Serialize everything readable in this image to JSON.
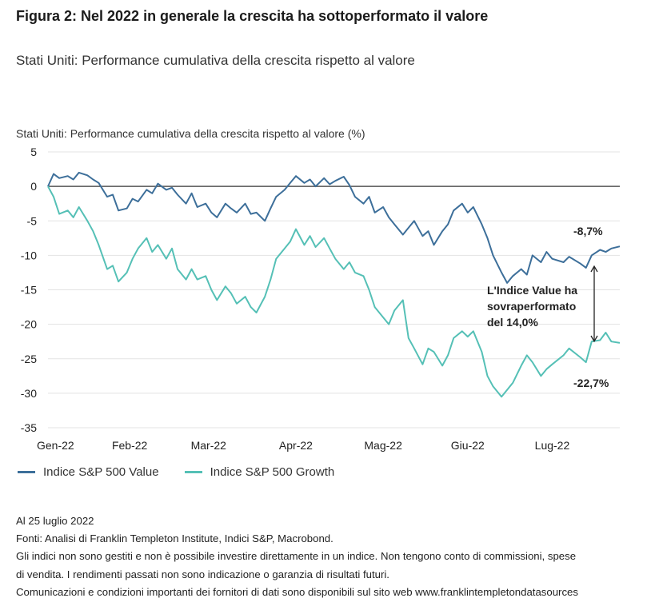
{
  "figure": {
    "title": "Figura 2: Nel 2022 in generale la crescita ha sottoperformato il valore",
    "subtitle": "Stati Uniti: Performance cumulativa della crescita rispetto al valore"
  },
  "notes": [
    "Al 25 luglio 2022",
    "Fonti: Analisi di Franklin Templeton Institute, Indici S&P, Macrobond.",
    "Gli indici non sono gestiti e non è possibile investire direttamente in un indice. Non tengono conto di commissioni, spese",
    "di vendita. I rendimenti passati non sono indicazione o garanzia di risultati futuri.",
    "Comunicazioni e condizioni importanti dei fornitori di dati sono disponibili sul sito web www.franklintempletondatasources"
  ],
  "colors": {
    "value": "#3d6f9a",
    "growth": "#55c0b6",
    "zero_line": "#555555",
    "grid": "#e3e3e3",
    "text": "#222222"
  },
  "chart_data": {
    "type": "line",
    "title": "Stati Uniti:  Performance cumulativa della crescita rispetto al valore (%)",
    "xlabel": "",
    "ylabel": "",
    "ylim": [
      -35,
      5
    ],
    "yticks": [
      5,
      0,
      -5,
      -10,
      -15,
      -20,
      -25,
      -30,
      -35
    ],
    "xlim": [
      "2022-01-03",
      "2022-07-25"
    ],
    "xticks": [
      {
        "date": "2022-01-03",
        "label": "Gen-22"
      },
      {
        "date": "2022-02-01",
        "label": "Feb-22"
      },
      {
        "date": "2022-03-01",
        "label": "Mar-22"
      },
      {
        "date": "2022-04-01",
        "label": "Apr-22"
      },
      {
        "date": "2022-05-02",
        "label": "Mag-22"
      },
      {
        "date": "2022-06-01",
        "label": "Giu-22"
      },
      {
        "date": "2022-07-01",
        "label": "Lug-22"
      }
    ],
    "grid": true,
    "legend_position": "bottom-left",
    "series": [
      {
        "name": "Indice S&P 500 Value",
        "color": "#3d6f9a",
        "points": [
          [
            "2022-01-03",
            0
          ],
          [
            "2022-01-05",
            1.8
          ],
          [
            "2022-01-07",
            1.2
          ],
          [
            "2022-01-10",
            1.5
          ],
          [
            "2022-01-12",
            1.0
          ],
          [
            "2022-01-14",
            2.0
          ],
          [
            "2022-01-17",
            1.6
          ],
          [
            "2022-01-19",
            1.0
          ],
          [
            "2022-01-21",
            0.5
          ],
          [
            "2022-01-24",
            -1.5
          ],
          [
            "2022-01-26",
            -1.2
          ],
          [
            "2022-01-28",
            -3.5
          ],
          [
            "2022-01-31",
            -3.2
          ],
          [
            "2022-02-02",
            -1.8
          ],
          [
            "2022-02-04",
            -2.2
          ],
          [
            "2022-02-07",
            -0.5
          ],
          [
            "2022-02-09",
            -1.0
          ],
          [
            "2022-02-11",
            0.4
          ],
          [
            "2022-02-14",
            -0.5
          ],
          [
            "2022-02-16",
            -0.2
          ],
          [
            "2022-02-18",
            -1.2
          ],
          [
            "2022-02-21",
            -2.5
          ],
          [
            "2022-02-23",
            -1.0
          ],
          [
            "2022-02-25",
            -3.0
          ],
          [
            "2022-02-28",
            -2.5
          ],
          [
            "2022-03-02",
            -3.8
          ],
          [
            "2022-03-04",
            -4.5
          ],
          [
            "2022-03-07",
            -2.5
          ],
          [
            "2022-03-09",
            -3.2
          ],
          [
            "2022-03-11",
            -3.8
          ],
          [
            "2022-03-14",
            -2.5
          ],
          [
            "2022-03-16",
            -4.0
          ],
          [
            "2022-03-18",
            -3.8
          ],
          [
            "2022-03-21",
            -5.0
          ],
          [
            "2022-03-23",
            -3.2
          ],
          [
            "2022-03-25",
            -1.5
          ],
          [
            "2022-03-28",
            -0.5
          ],
          [
            "2022-03-30",
            0.5
          ],
          [
            "2022-04-01",
            1.5
          ],
          [
            "2022-04-04",
            0.5
          ],
          [
            "2022-04-06",
            1.0
          ],
          [
            "2022-04-08",
            0.0
          ],
          [
            "2022-04-11",
            1.2
          ],
          [
            "2022-04-13",
            0.3
          ],
          [
            "2022-04-15",
            0.8
          ],
          [
            "2022-04-18",
            1.4
          ],
          [
            "2022-04-20",
            0.2
          ],
          [
            "2022-04-22",
            -1.5
          ],
          [
            "2022-04-25",
            -2.5
          ],
          [
            "2022-04-27",
            -1.5
          ],
          [
            "2022-04-29",
            -3.8
          ],
          [
            "2022-05-02",
            -3.0
          ],
          [
            "2022-05-04",
            -4.5
          ],
          [
            "2022-05-06",
            -5.5
          ],
          [
            "2022-05-09",
            -7.0
          ],
          [
            "2022-05-11",
            -6.0
          ],
          [
            "2022-05-13",
            -5.0
          ],
          [
            "2022-05-16",
            -7.2
          ],
          [
            "2022-05-18",
            -6.5
          ],
          [
            "2022-05-20",
            -8.5
          ],
          [
            "2022-05-23",
            -6.5
          ],
          [
            "2022-05-25",
            -5.5
          ],
          [
            "2022-05-27",
            -3.5
          ],
          [
            "2022-05-30",
            -2.5
          ],
          [
            "2022-06-01",
            -3.8
          ],
          [
            "2022-06-03",
            -3.0
          ],
          [
            "2022-06-06",
            -5.5
          ],
          [
            "2022-06-08",
            -7.5
          ],
          [
            "2022-06-10",
            -10.0
          ],
          [
            "2022-06-13",
            -12.5
          ],
          [
            "2022-06-15",
            -14.0
          ],
          [
            "2022-06-17",
            -13.0
          ],
          [
            "2022-06-20",
            -12.0
          ],
          [
            "2022-06-22",
            -12.8
          ],
          [
            "2022-06-24",
            -10.0
          ],
          [
            "2022-06-27",
            -11.0
          ],
          [
            "2022-06-29",
            -9.5
          ],
          [
            "2022-07-01",
            -10.5
          ],
          [
            "2022-07-05",
            -11.0
          ],
          [
            "2022-07-07",
            -10.2
          ],
          [
            "2022-07-11",
            -11.2
          ],
          [
            "2022-07-13",
            -11.8
          ],
          [
            "2022-07-15",
            -10.0
          ],
          [
            "2022-07-18",
            -9.2
          ],
          [
            "2022-07-20",
            -9.5
          ],
          [
            "2022-07-22",
            -9.0
          ],
          [
            "2022-07-25",
            -8.7
          ]
        ]
      },
      {
        "name": "Indice S&P 500 Growth",
        "color": "#55c0b6",
        "points": [
          [
            "2022-01-03",
            0
          ],
          [
            "2022-01-05",
            -1.5
          ],
          [
            "2022-01-07",
            -4.0
          ],
          [
            "2022-01-10",
            -3.5
          ],
          [
            "2022-01-12",
            -4.5
          ],
          [
            "2022-01-14",
            -3.0
          ],
          [
            "2022-01-17",
            -5.0
          ],
          [
            "2022-01-19",
            -6.5
          ],
          [
            "2022-01-21",
            -8.5
          ],
          [
            "2022-01-24",
            -12.0
          ],
          [
            "2022-01-26",
            -11.5
          ],
          [
            "2022-01-28",
            -13.8
          ],
          [
            "2022-01-31",
            -12.5
          ],
          [
            "2022-02-02",
            -10.5
          ],
          [
            "2022-02-04",
            -9.0
          ],
          [
            "2022-02-07",
            -7.5
          ],
          [
            "2022-02-09",
            -9.5
          ],
          [
            "2022-02-11",
            -8.5
          ],
          [
            "2022-02-14",
            -10.5
          ],
          [
            "2022-02-16",
            -9.0
          ],
          [
            "2022-02-18",
            -12.0
          ],
          [
            "2022-02-21",
            -13.5
          ],
          [
            "2022-02-23",
            -12.0
          ],
          [
            "2022-02-25",
            -13.5
          ],
          [
            "2022-02-28",
            -13.0
          ],
          [
            "2022-03-02",
            -15.0
          ],
          [
            "2022-03-04",
            -16.5
          ],
          [
            "2022-03-07",
            -14.5
          ],
          [
            "2022-03-09",
            -15.5
          ],
          [
            "2022-03-11",
            -17.0
          ],
          [
            "2022-03-14",
            -16.0
          ],
          [
            "2022-03-16",
            -17.5
          ],
          [
            "2022-03-18",
            -18.3
          ],
          [
            "2022-03-21",
            -16.0
          ],
          [
            "2022-03-23",
            -13.5
          ],
          [
            "2022-03-25",
            -10.5
          ],
          [
            "2022-03-28",
            -9.0
          ],
          [
            "2022-03-30",
            -8.0
          ],
          [
            "2022-04-01",
            -6.2
          ],
          [
            "2022-04-04",
            -8.5
          ],
          [
            "2022-04-06",
            -7.2
          ],
          [
            "2022-04-08",
            -8.8
          ],
          [
            "2022-04-11",
            -7.5
          ],
          [
            "2022-04-13",
            -9.0
          ],
          [
            "2022-04-15",
            -10.5
          ],
          [
            "2022-04-18",
            -12.0
          ],
          [
            "2022-04-20",
            -11.0
          ],
          [
            "2022-04-22",
            -12.5
          ],
          [
            "2022-04-25",
            -13.0
          ],
          [
            "2022-04-27",
            -15.0
          ],
          [
            "2022-04-29",
            -17.5
          ],
          [
            "2022-05-02",
            -19.0
          ],
          [
            "2022-05-04",
            -20.0
          ],
          [
            "2022-05-06",
            -18.0
          ],
          [
            "2022-05-09",
            -16.5
          ],
          [
            "2022-05-11",
            -22.0
          ],
          [
            "2022-05-13",
            -23.5
          ],
          [
            "2022-05-16",
            -25.8
          ],
          [
            "2022-05-18",
            -23.5
          ],
          [
            "2022-05-20",
            -24.0
          ],
          [
            "2022-05-23",
            -26.0
          ],
          [
            "2022-05-25",
            -24.5
          ],
          [
            "2022-05-27",
            -22.0
          ],
          [
            "2022-05-30",
            -21.0
          ],
          [
            "2022-06-01",
            -21.8
          ],
          [
            "2022-06-03",
            -21.0
          ],
          [
            "2022-06-06",
            -24.0
          ],
          [
            "2022-06-08",
            -27.5
          ],
          [
            "2022-06-10",
            -29.0
          ],
          [
            "2022-06-13",
            -30.5
          ],
          [
            "2022-06-15",
            -29.5
          ],
          [
            "2022-06-17",
            -28.5
          ],
          [
            "2022-06-20",
            -26.0
          ],
          [
            "2022-06-22",
            -24.5
          ],
          [
            "2022-06-24",
            -25.5
          ],
          [
            "2022-06-27",
            -27.5
          ],
          [
            "2022-06-29",
            -26.5
          ],
          [
            "2022-07-01",
            -25.8
          ],
          [
            "2022-07-05",
            -24.5
          ],
          [
            "2022-07-07",
            -23.5
          ],
          [
            "2022-07-11",
            -24.8
          ],
          [
            "2022-07-13",
            -25.5
          ],
          [
            "2022-07-15",
            -22.5
          ],
          [
            "2022-07-18",
            -22.3
          ],
          [
            "2022-07-20",
            -21.2
          ],
          [
            "2022-07-22",
            -22.5
          ],
          [
            "2022-07-25",
            -22.7
          ]
        ]
      }
    ],
    "annotations": {
      "value_end_label": "-8,7%",
      "growth_end_label": "-22,7%",
      "spread_text": [
        "L'Indice Value ha",
        "sovraperformato",
        "del 14,0%"
      ]
    }
  }
}
